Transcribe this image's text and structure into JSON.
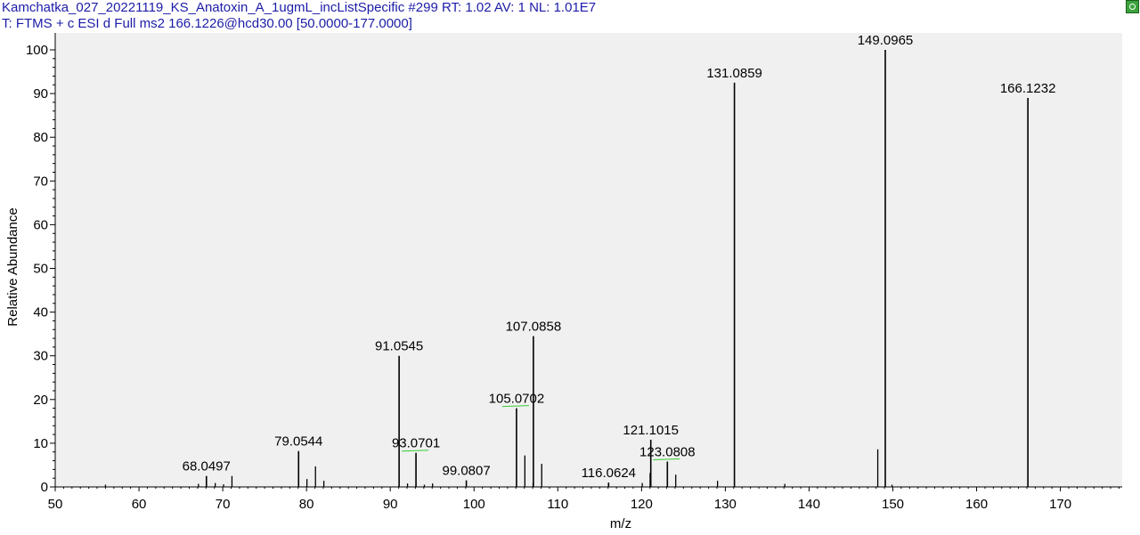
{
  "header": {
    "line1": "Kamchatka_027_20221119_KS_Anatoxin_A_1ugmL_incListSpecific #299   RT: 1.02   AV: 1   NL: 1.01E7",
    "line2": "T: FTMS + c ESI d Full ms2 166.1226@hcd30.00 [50.0000-177.0000]"
  },
  "colors": {
    "header_text": "#1c1ca8",
    "plot_bg": "#f0f0f0",
    "peak": "#000000",
    "label_mark": "#33cc33"
  },
  "chart_data": {
    "type": "bar",
    "xlabel": "m/z",
    "ylabel": "Relative Abundance",
    "xlim": [
      50,
      177
    ],
    "ylim": [
      0,
      100
    ],
    "x_ticks": [
      50,
      60,
      70,
      80,
      90,
      100,
      110,
      120,
      130,
      140,
      150,
      160,
      170
    ],
    "y_ticks": [
      0,
      10,
      20,
      30,
      40,
      50,
      60,
      70,
      80,
      90,
      100
    ],
    "labeled_peaks": [
      {
        "mz": 68.0497,
        "label": "68.0497",
        "intensity": 2.5
      },
      {
        "mz": 79.0544,
        "label": "79.0544",
        "intensity": 8.2
      },
      {
        "mz": 91.0545,
        "label": "91.0545",
        "intensity": 30.0
      },
      {
        "mz": 93.0701,
        "label": "93.0701",
        "intensity": 7.8,
        "marker": true
      },
      {
        "mz": 99.0807,
        "label": "99.0807",
        "intensity": 1.5
      },
      {
        "mz": 105.0702,
        "label": "105.0702",
        "intensity": 18.0,
        "marker": true
      },
      {
        "mz": 107.0858,
        "label": "107.0858",
        "intensity": 34.5
      },
      {
        "mz": 116.0624,
        "label": "116.0624",
        "intensity": 1.0
      },
      {
        "mz": 121.1015,
        "label": "121.1015",
        "intensity": 10.8
      },
      {
        "mz": 123.0808,
        "label": "123.0808",
        "intensity": 5.8,
        "marker": true
      },
      {
        "mz": 131.0859,
        "label": "131.0859",
        "intensity": 92.5
      },
      {
        "mz": 149.0965,
        "label": "149.0965",
        "intensity": 100.0
      },
      {
        "mz": 166.1232,
        "label": "166.1232",
        "intensity": 89.0
      }
    ],
    "minor_peaks": [
      {
        "mz": 56.0,
        "intensity": 0.5
      },
      {
        "mz": 67.1,
        "intensity": 0.7
      },
      {
        "mz": 69.1,
        "intensity": 0.9
      },
      {
        "mz": 70.1,
        "intensity": 0.6
      },
      {
        "mz": 71.1,
        "intensity": 2.5
      },
      {
        "mz": 80.05,
        "intensity": 1.8
      },
      {
        "mz": 81.07,
        "intensity": 4.7
      },
      {
        "mz": 82.07,
        "intensity": 1.4
      },
      {
        "mz": 92.06,
        "intensity": 0.8
      },
      {
        "mz": 94.07,
        "intensity": 0.5
      },
      {
        "mz": 95.05,
        "intensity": 0.8
      },
      {
        "mz": 106.07,
        "intensity": 7.2
      },
      {
        "mz": 107.05,
        "intensity": 1.0
      },
      {
        "mz": 108.08,
        "intensity": 5.3
      },
      {
        "mz": 120.08,
        "intensity": 0.9
      },
      {
        "mz": 121.02,
        "intensity": 3.2
      },
      {
        "mz": 124.08,
        "intensity": 2.8
      },
      {
        "mz": 129.07,
        "intensity": 1.4
      },
      {
        "mz": 137.1,
        "intensity": 0.7
      },
      {
        "mz": 148.2,
        "intensity": 8.6
      },
      {
        "mz": 149.9,
        "intensity": 0.5
      }
    ]
  }
}
